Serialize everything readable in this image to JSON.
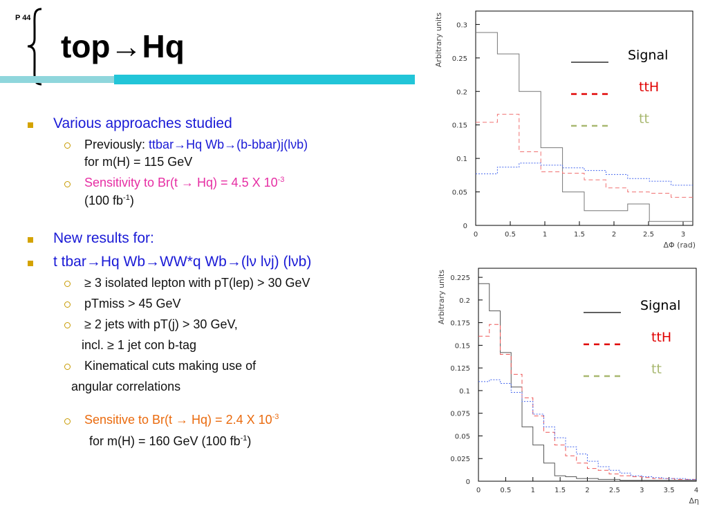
{
  "slide": {
    "page_label": "P 44",
    "title": "top→Hq",
    "accent_colors": {
      "bar_light": "#8fd6dc",
      "bar_dark": "#22c5d8",
      "bullet": "#d4a300"
    }
  },
  "bullets": {
    "b1": "Various approaches studied",
    "b1_s1_prefix": "Previously: ",
    "b1_s1_blue": "ttbar→Hq Wb→(b-bbar)j(lνb)",
    "b1_s1_line2": "for m(H) = 115 GeV",
    "b1_s2_main": "Sensitivity to Br(t → Hq) = 4.5 X 10",
    "b1_s2_exp": "-3",
    "b1_s2_line2a": "(100 fb",
    "b1_s2_line2exp": "-1",
    "b1_s2_line2b": ")",
    "b2": "New results for:",
    "b3": "t tbar→Hq Wb→WW*q Wb→(lν lνj) (lνb)",
    "b3_s1": "≥ 3 isolated lepton with pT(lep) > 30 GeV",
    "b3_s2": "pTmiss > 45 GeV",
    "b3_s3": "≥ 2 jets with pT(j) > 30 GeV,",
    "b3_s3_cont": "incl. ≥ 1 jet con b-tag",
    "b3_s4": "Kinematical cuts making use of",
    "b3_s4_cont": "angular correlations",
    "b3_s5_main": "Sensitive to Br(t → Hq) = 2.4 X 10",
    "b3_s5_exp": "-3",
    "b3_s5_line2a": "for m(H) = 160 GeV   (100 fb",
    "b3_s5_line2exp": "-1",
    "b3_s5_line2b": ")"
  },
  "chart_data": [
    {
      "type": "line",
      "xlabel": "ΔΦ (rad)",
      "ylabel": "Arbitrary units",
      "xlim": [
        0,
        3.14
      ],
      "ylim": [
        0,
        0.32
      ],
      "xticks": [
        "0",
        "0.5",
        "1",
        "1.5",
        "2",
        "2.5",
        "3"
      ],
      "xtick_values": [
        0,
        0.5,
        1,
        1.5,
        2,
        2.5,
        3
      ],
      "yticks": [
        "0",
        "0.05",
        "0.1",
        "0.15",
        "0.2",
        "0.25",
        "0.3"
      ],
      "ytick_values": [
        0,
        0.05,
        0.1,
        0.15,
        0.2,
        0.25,
        0.3
      ],
      "grid": false,
      "legend_position": "top-right",
      "bin_edges": [
        0,
        0.314,
        0.628,
        0.942,
        1.256,
        1.57,
        1.884,
        2.198,
        2.512,
        2.826,
        3.14
      ],
      "series": [
        {
          "name": "Signal",
          "legend_color": "#000000",
          "line_color": "#777777",
          "style": "solid",
          "values": [
            0.288,
            0.256,
            0.2,
            0.116,
            0.05,
            0.022,
            0.022,
            0.032,
            0.006,
            0.006
          ]
        },
        {
          "name": "ttH",
          "legend_color": "#e00000",
          "line_color": "#f07070",
          "style": "dashed",
          "values": [
            0.154,
            0.166,
            0.11,
            0.08,
            0.078,
            0.068,
            0.056,
            0.05,
            0.048,
            0.042
          ]
        },
        {
          "name": "tt",
          "legend_color": "#a8b870",
          "line_color": "#4466ee",
          "style": "dotted",
          "values": [
            0.077,
            0.087,
            0.093,
            0.09,
            0.086,
            0.082,
            0.076,
            0.07,
            0.066,
            0.06
          ]
        }
      ]
    },
    {
      "type": "line",
      "xlabel": "Δη",
      "ylabel": "Arbitrary units",
      "xlim": [
        0,
        4
      ],
      "ylim": [
        0,
        0.235
      ],
      "xticks": [
        "0",
        "0.5",
        "1",
        "1.5",
        "2",
        "2.5",
        "3",
        "3.5",
        "4"
      ],
      "xtick_values": [
        0,
        0.5,
        1,
        1.5,
        2,
        2.5,
        3,
        3.5,
        4
      ],
      "yticks": [
        "0",
        "0.025",
        "0.05",
        "0.075",
        "0.1",
        "0.125",
        "0.15",
        "0.175",
        "0.2",
        "0.225"
      ],
      "ytick_values": [
        0,
        0.025,
        0.05,
        0.075,
        0.1,
        0.125,
        0.15,
        0.175,
        0.2,
        0.225
      ],
      "grid": false,
      "legend_position": "top-right",
      "bin_edges": [
        0,
        0.2,
        0.4,
        0.6,
        0.8,
        1.0,
        1.2,
        1.4,
        1.6,
        1.8,
        2.0,
        2.2,
        2.4,
        2.6,
        2.8,
        3.0,
        3.2,
        3.4,
        3.6,
        3.8,
        4.0
      ],
      "series": [
        {
          "name": "Signal",
          "legend_color": "#000000",
          "line_color": "#555555",
          "style": "solid",
          "values": [
            0.218,
            0.188,
            0.142,
            0.104,
            0.06,
            0.04,
            0.02,
            0.006,
            0.005,
            0.003,
            0.003,
            0.002,
            0.002,
            0.001,
            0.001,
            0.001,
            0.001,
            0.001,
            0.001,
            0.001
          ]
        },
        {
          "name": "ttH",
          "legend_color": "#e00000",
          "line_color": "#ee5555",
          "style": "dashed",
          "values": [
            0.16,
            0.173,
            0.14,
            0.118,
            0.092,
            0.072,
            0.054,
            0.04,
            0.028,
            0.02,
            0.014,
            0.012,
            0.008,
            0.006,
            0.005,
            0.004,
            0.003,
            0.003,
            0.002,
            0.002
          ]
        },
        {
          "name": "tt",
          "legend_color": "#a8b870",
          "line_color": "#4466ee",
          "style": "dotted",
          "values": [
            0.11,
            0.112,
            0.108,
            0.098,
            0.088,
            0.074,
            0.06,
            0.048,
            0.038,
            0.03,
            0.022,
            0.016,
            0.012,
            0.009,
            0.006,
            0.005,
            0.004,
            0.003,
            0.003,
            0.002
          ]
        }
      ]
    }
  ]
}
